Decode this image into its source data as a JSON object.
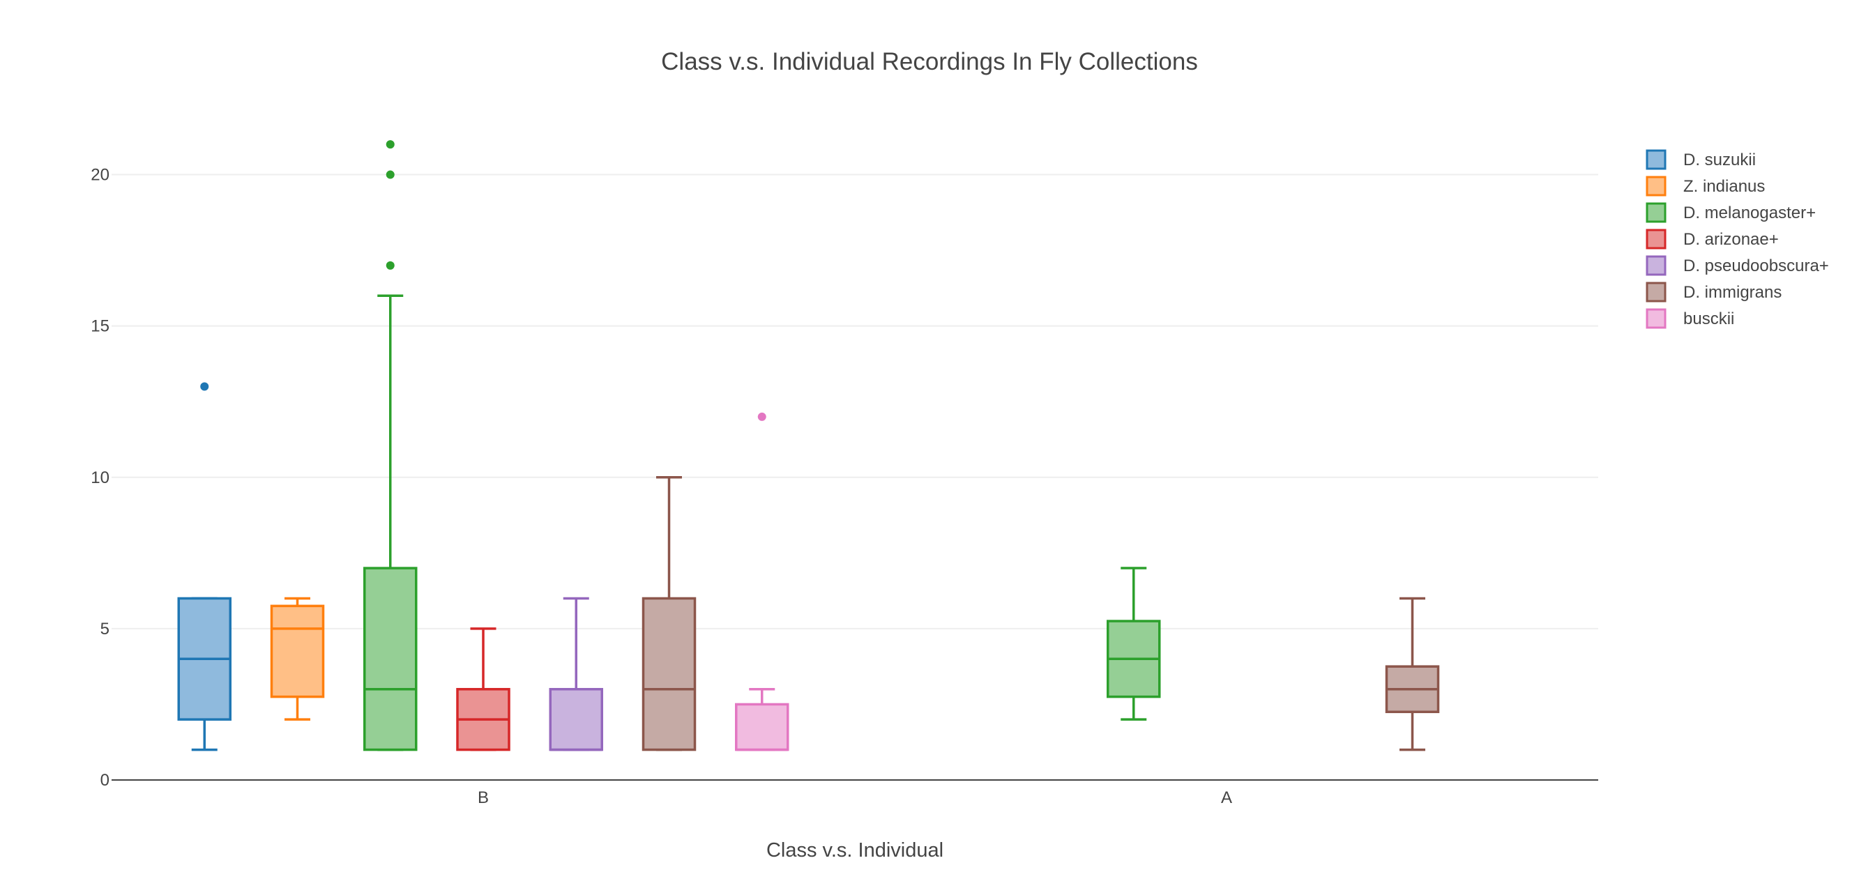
{
  "chart_data": {
    "type": "box",
    "title": "Class v.s. Individual Recordings In Fly Collections",
    "xlabel": "Class v.s. Individual",
    "ylabel": "",
    "ylim": [
      0,
      22.5
    ],
    "yticks": [
      0,
      5,
      10,
      15,
      20
    ],
    "grid": true,
    "legend_position": "top-right",
    "categories": [
      "B",
      "A"
    ],
    "series": [
      {
        "name": "D. suzukii",
        "color": "#1f77b4",
        "fill": "#8fbadd",
        "boxes": [
          {
            "category": "B",
            "q1": 2,
            "median": 4,
            "q3": 6,
            "whisker_low": 1,
            "whisker_high": 6,
            "outliers": [
              13
            ]
          }
        ]
      },
      {
        "name": "Z. indianus",
        "color": "#ff7f0e",
        "fill": "#ffbf86",
        "boxes": [
          {
            "category": "B",
            "q1": 2.75,
            "median": 5,
            "q3": 5.75,
            "whisker_low": 2,
            "whisker_high": 6,
            "outliers": []
          }
        ]
      },
      {
        "name": "D. melanogaster+",
        "color": "#2ca02c",
        "fill": "#95cf95",
        "boxes": [
          {
            "category": "B",
            "q1": 1,
            "median": 3,
            "q3": 7,
            "whisker_low": 1,
            "whisker_high": 16,
            "outliers": [
              17,
              20,
              21
            ]
          },
          {
            "category": "A",
            "q1": 2.75,
            "median": 4,
            "q3": 5.25,
            "whisker_low": 2,
            "whisker_high": 7,
            "outliers": []
          }
        ]
      },
      {
        "name": "D. arizonae+",
        "color": "#d62728",
        "fill": "#ea9393",
        "boxes": [
          {
            "category": "B",
            "q1": 1,
            "median": 2,
            "q3": 3,
            "whisker_low": 1,
            "whisker_high": 5,
            "outliers": []
          }
        ]
      },
      {
        "name": "D. pseudoobscura+",
        "color": "#9467bd",
        "fill": "#c9b3de",
        "boxes": [
          {
            "category": "B",
            "q1": 1,
            "median": 1,
            "q3": 3,
            "whisker_low": 1,
            "whisker_high": 6,
            "outliers": []
          }
        ]
      },
      {
        "name": "D. immigrans",
        "color": "#8c564b",
        "fill": "#c5aaa5",
        "boxes": [
          {
            "category": "B",
            "q1": 1,
            "median": 3,
            "q3": 6,
            "whisker_low": 1,
            "whisker_high": 10,
            "outliers": []
          },
          {
            "category": "A",
            "q1": 2.25,
            "median": 3,
            "q3": 3.75,
            "whisker_low": 1,
            "whisker_high": 6,
            "outliers": []
          }
        ]
      },
      {
        "name": "busckii",
        "color": "#e377c2",
        "fill": "#f1bbe0",
        "boxes": [
          {
            "category": "B",
            "q1": 1,
            "median": 1,
            "q3": 2.5,
            "whisker_low": 1,
            "whisker_high": 3,
            "outliers": [
              12
            ]
          }
        ]
      }
    ]
  }
}
